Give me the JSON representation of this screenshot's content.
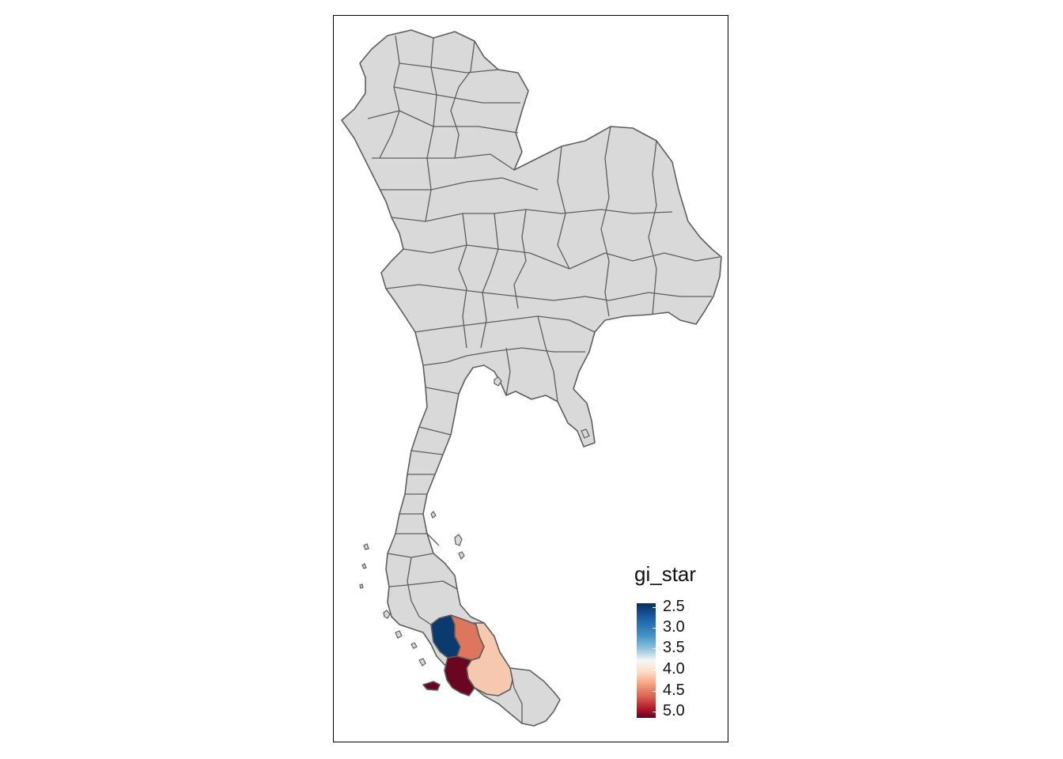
{
  "legend": {
    "title": "gi_star",
    "ticks": [
      "2.5",
      "3.0",
      "3.5",
      "4.0",
      "4.5",
      "5.0"
    ]
  },
  "colors": {
    "no_data_fill": "#d9d9d9",
    "border": "#5e5e5e",
    "scale": [
      "#053061",
      "#2166ac",
      "#4393c3",
      "#92c5de",
      "#f7f7f7",
      "#fddbc7",
      "#f4a582",
      "#d6604d",
      "#b2182b",
      "#67001f"
    ]
  },
  "regions": [
    {
      "name": "highlight-dark-blue",
      "gi_star": 2.5,
      "color": "#0b3a6e"
    },
    {
      "name": "highlight-light-red",
      "gi_star": 4.4,
      "color": "#de755d"
    },
    {
      "name": "highlight-peach",
      "gi_star": 4.1,
      "color": "#f7c8b0"
    },
    {
      "name": "highlight-dark-red",
      "gi_star": 5.0,
      "color": "#6a0620"
    }
  ]
}
